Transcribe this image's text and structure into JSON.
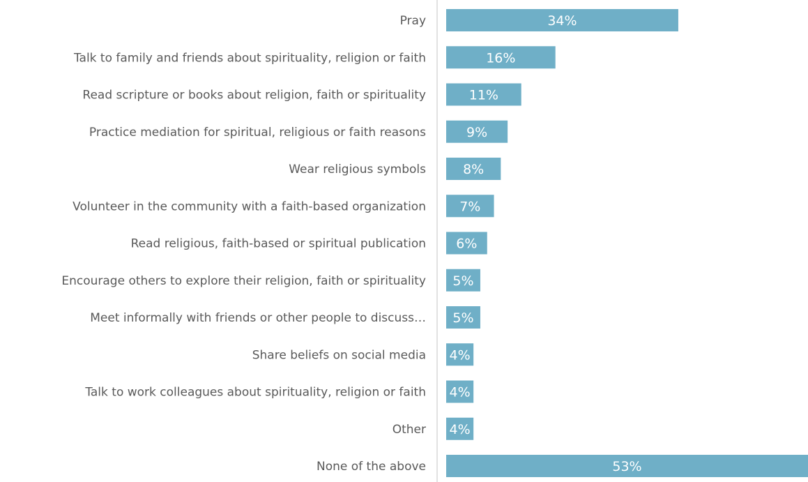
{
  "chart_data": {
    "type": "bar",
    "orientation": "horizontal",
    "categories": [
      "Pray",
      "Talk to family and friends about spirituality, religion or faith",
      "Read scripture or books about religion, faith or spirituality",
      "Practice mediation for spiritual, religious or faith reasons",
      "Wear religious symbols",
      "Volunteer in the community with a faith-based organization",
      "Read religious, faith-based or spiritual publication",
      "Encourage others to explore their religion, faith or spirituality",
      "Meet informally with friends or other people to discuss…",
      "Share beliefs on social media",
      "Talk to work colleagues about spirituality, religion or faith",
      "Other",
      "None of the above"
    ],
    "values": [
      34,
      16,
      11,
      9,
      8,
      7,
      6,
      5,
      5,
      4,
      4,
      4,
      53
    ],
    "data_labels": [
      "34%",
      "16%",
      "11%",
      "9%",
      "8%",
      "7%",
      "6%",
      "5%",
      "5%",
      "4%",
      "4%",
      "4%",
      "53%"
    ],
    "xlim": [
      0,
      53
    ],
    "grid": false,
    "legend": "none",
    "bar_color": "#6fafc7",
    "axis_color": "#d9d9d9",
    "label_color": "#595959"
  }
}
